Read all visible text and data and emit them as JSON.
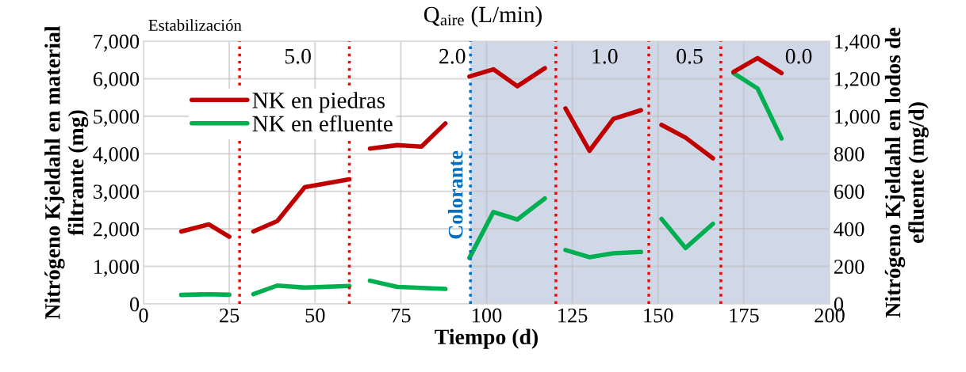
{
  "chart_data": {
    "type": "line",
    "title": "Q$_{aire}$ (L/min)",
    "xlabel": "Tiempo (d)",
    "ylabel": "Nitrógeno Kjeldahl en material filtrante (mg)",
    "y2label": "Nitrógeno Kjeldahl en lodos de efluente (mg/d)",
    "x": [
      11,
      19,
      25,
      28,
      32,
      39,
      47,
      60,
      63,
      66,
      74,
      81,
      88,
      92,
      95,
      102,
      109,
      117,
      120,
      123,
      130,
      137,
      145,
      147,
      151,
      158,
      166,
      168,
      172,
      179,
      186
    ],
    "series": [
      {
        "name": "NK en piedras",
        "color": "#c00000",
        "values": [
          1930,
          2120,
          1790,
          null,
          1930,
          2210,
          3110,
          3320,
          null,
          4140,
          4230,
          4190,
          4810,
          null,
          6060,
          6250,
          5800,
          6280,
          null,
          5210,
          4080,
          4930,
          5160,
          null,
          4770,
          4430,
          3880,
          null,
          6180,
          6550,
          6150
        ]
      },
      {
        "name": "NK en efluente",
        "color": "#00b050",
        "axis": "y2",
        "values": [
          48,
          52,
          49,
          null,
          52,
          98,
          87,
          96,
          null,
          124,
          91,
          85,
          80,
          null,
          245,
          490,
          450,
          562,
          null,
          287,
          249,
          270,
          277,
          null,
          453,
          298,
          427,
          null,
          1230,
          1148,
          881
        ]
      }
    ],
    "xlim": [
      0,
      200
    ],
    "xticks": [
      0,
      25,
      50,
      75,
      100,
      125,
      150,
      175,
      200
    ],
    "ylim": [
      0,
      7000
    ],
    "yticks": [
      0,
      {
        "value": 1000,
        "label": "1,000"
      },
      {
        "value": 2000,
        "label": "2,000"
      },
      {
        "value": 3000,
        "label": "3,000"
      },
      {
        "value": 4000,
        "label": "4,000"
      },
      {
        "value": 5000,
        "label": "5,000"
      },
      {
        "value": 6000,
        "label": "6,000"
      },
      {
        "value": 7000,
        "label": "7,000"
      }
    ],
    "y2lim": [
      0,
      1400
    ],
    "y2ticks": [
      0,
      200,
      400,
      600,
      800,
      {
        "value": 1000,
        "label": "1,000"
      },
      {
        "value": 1200,
        "label": "1,200"
      },
      {
        "value": 1400,
        "label": "1,400"
      }
    ],
    "ref_lines": [
      {
        "axis": "x",
        "value": 28,
        "color": "#ff0000",
        "line_style": "dotted"
      },
      {
        "axis": "x",
        "value": 60,
        "color": "#ff0000",
        "line_style": "dotted"
      },
      {
        "axis": "x",
        "value": 95.3,
        "color": "#0070c0",
        "line_style": "dotted",
        "label": "Colorante"
      },
      {
        "axis": "x",
        "value": 120.2,
        "color": "#ff0000",
        "line_style": "dotted"
      },
      {
        "axis": "x",
        "value": 147.3,
        "color": "#ff0000",
        "line_style": "dotted"
      },
      {
        "axis": "x",
        "value": 168.3,
        "color": "#ff0000",
        "line_style": "dotted"
      }
    ],
    "bands": [
      {
        "axis": "x",
        "from": 95.3,
        "to": 200,
        "color": "#d0d8e8"
      }
    ],
    "annotations": [
      "Estabilización",
      "5.0",
      "2.0",
      "1.0",
      "0.5",
      "0.0"
    ],
    "grid": true,
    "legend": "top left",
    "line_style": "solid",
    "marker": "none"
  }
}
